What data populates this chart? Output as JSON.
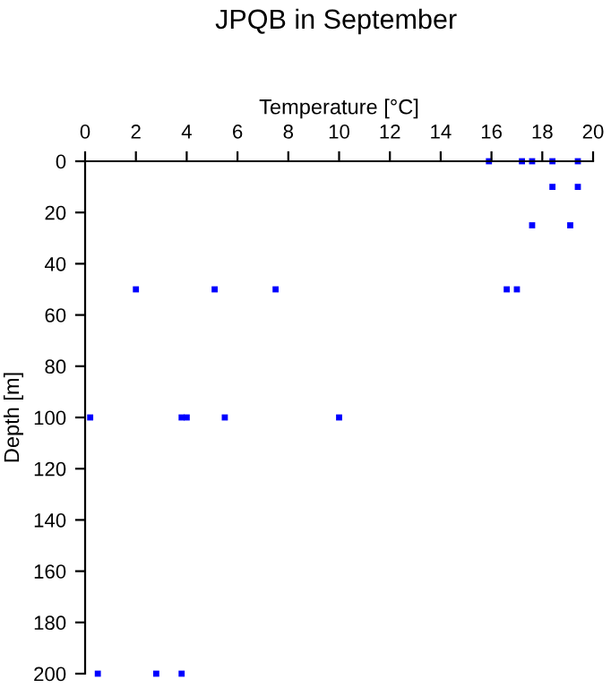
{
  "chart_data": {
    "type": "scatter",
    "title": "JPQB in September",
    "xlabel": "Temperature [°C]",
    "ylabel": "Depth [m]",
    "series": [
      {
        "color": "#0000ff",
        "x": [
          15.9,
          17.2,
          17.6,
          18.4,
          19.4,
          18.4,
          19.4,
          17.6,
          19.1,
          2.0,
          5.1,
          7.5,
          16.6,
          17.0,
          0.2,
          3.8,
          4.0,
          5.5,
          10.0,
          0.5,
          2.8,
          3.8
        ],
        "values": [
          0,
          0,
          0,
          0,
          0,
          10,
          10,
          25,
          25,
          50,
          50,
          50,
          50,
          50,
          100,
          100,
          100,
          100,
          100,
          200,
          200,
          200
        ]
      }
    ],
    "xlim": [
      0,
      20
    ],
    "xticks": [
      0,
      2,
      4,
      6,
      8,
      10,
      12,
      14,
      16,
      18,
      20
    ],
    "ylim": [
      200,
      0
    ],
    "yticks": [
      0,
      20,
      40,
      60,
      80,
      100,
      120,
      140,
      160,
      180,
      200
    ],
    "marker": "square",
    "grid": false,
    "legend": false
  }
}
